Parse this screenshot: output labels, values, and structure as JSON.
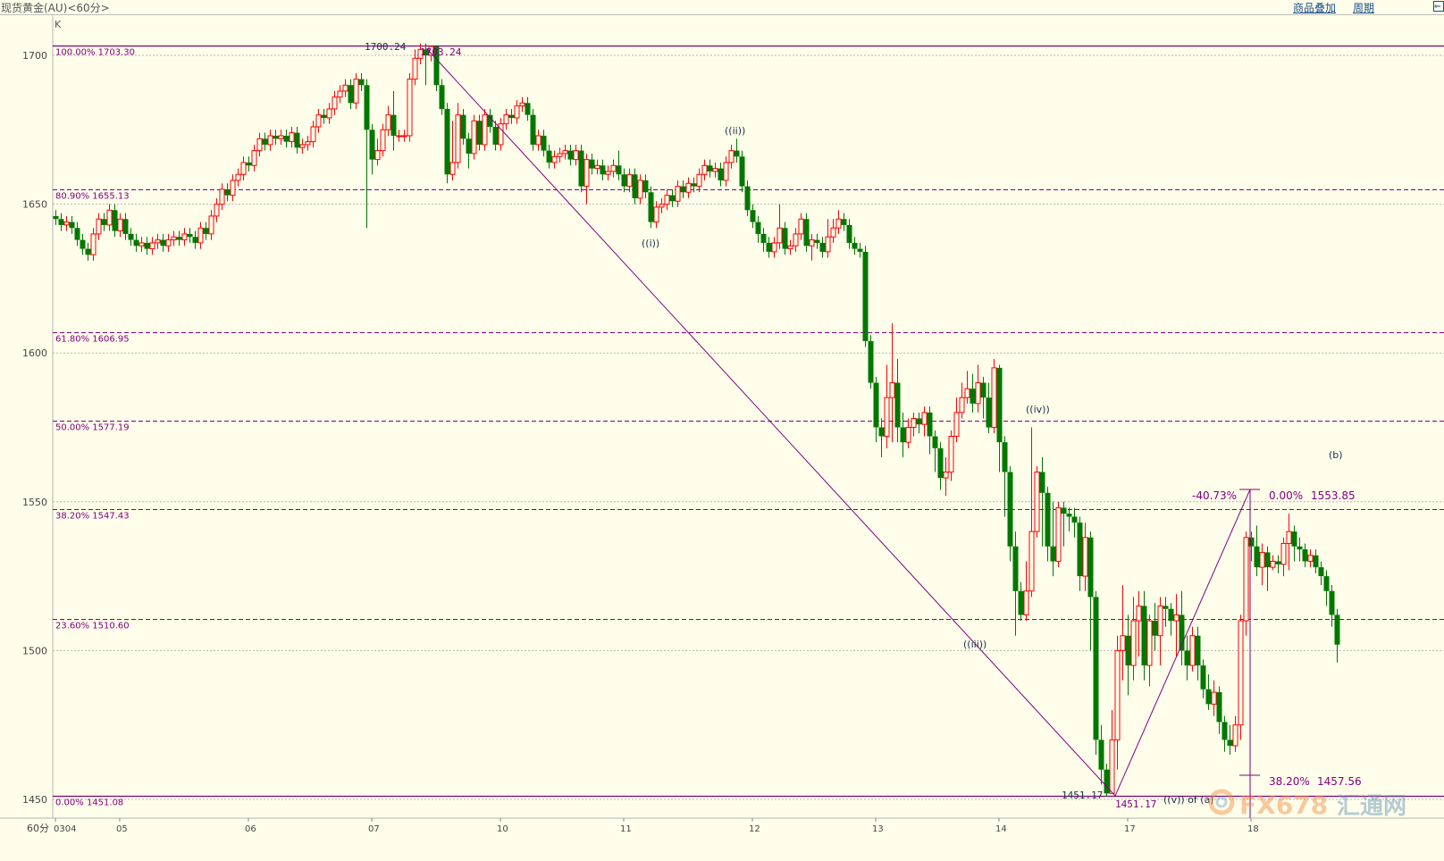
{
  "header": {
    "title": "现货黄金(AU)<60分>",
    "links": [
      "商品叠加",
      "周期"
    ],
    "back_icon": "arrow-left-icon"
  },
  "chart_data": {
    "type": "candlestick",
    "indicator_label": "K",
    "period_label": "60分",
    "ylim": [
      1440,
      1712
    ],
    "y_ticks": [
      1450,
      1500,
      1550,
      1600,
      1650,
      1700
    ],
    "x_ticks": [
      {
        "label": "0304",
        "bar": 0
      },
      {
        "label": "05",
        "bar": 12
      },
      {
        "label": "06",
        "bar": 36
      },
      {
        "label": "07",
        "bar": 59
      },
      {
        "label": "10",
        "bar": 83
      },
      {
        "label": "11",
        "bar": 106
      },
      {
        "label": "12",
        "bar": 130
      },
      {
        "label": "13",
        "bar": 153
      },
      {
        "label": "14",
        "bar": 176
      },
      {
        "label": "17",
        "bar": 200
      },
      {
        "label": "18",
        "bar": 223
      }
    ],
    "colors": {
      "up": "#ff0000",
      "down": "#007800",
      "fib": "#800080",
      "grid": "#b4b4b4"
    },
    "first_open": 1646,
    "hlc": [
      [
        1648,
        1643,
        1645
      ],
      [
        1647,
        1641,
        1643
      ],
      [
        1646,
        1641,
        1644
      ],
      [
        1646,
        1640,
        1642
      ],
      [
        1644,
        1636,
        1638
      ],
      [
        1640,
        1633,
        1635
      ],
      [
        1637,
        1631,
        1633
      ],
      [
        1642,
        1631,
        1640
      ],
      [
        1647,
        1638,
        1645
      ],
      [
        1647,
        1641,
        1643
      ],
      [
        1650,
        1641,
        1648
      ],
      [
        1650,
        1639,
        1641
      ],
      [
        1647,
        1639,
        1645
      ],
      [
        1647,
        1638,
        1640
      ],
      [
        1642,
        1636,
        1638
      ],
      [
        1640,
        1634,
        1636
      ],
      [
        1639,
        1634,
        1637
      ],
      [
        1639,
        1633,
        1635
      ],
      [
        1639,
        1633,
        1637
      ],
      [
        1640,
        1635,
        1638
      ],
      [
        1640,
        1634,
        1636
      ],
      [
        1640,
        1634,
        1638
      ],
      [
        1641,
        1636,
        1639
      ],
      [
        1641,
        1636,
        1638
      ],
      [
        1642,
        1636,
        1640
      ],
      [
        1642,
        1637,
        1639
      ],
      [
        1641,
        1635,
        1637
      ],
      [
        1644,
        1635,
        1642
      ],
      [
        1644,
        1638,
        1640
      ],
      [
        1648,
        1638,
        1646
      ],
      [
        1652,
        1644,
        1650
      ],
      [
        1657,
        1648,
        1655
      ],
      [
        1657,
        1651,
        1653
      ],
      [
        1660,
        1651,
        1658
      ],
      [
        1662,
        1656,
        1660
      ],
      [
        1666,
        1658,
        1664
      ],
      [
        1666,
        1661,
        1663
      ],
      [
        1670,
        1661,
        1668
      ],
      [
        1674,
        1666,
        1672
      ],
      [
        1674,
        1668,
        1670
      ],
      [
        1675,
        1668,
        1673
      ],
      [
        1675,
        1670,
        1672
      ],
      [
        1675,
        1670,
        1673
      ],
      [
        1675,
        1669,
        1671
      ],
      [
        1676,
        1669,
        1674
      ],
      [
        1676,
        1667,
        1669
      ],
      [
        1672,
        1667,
        1670
      ],
      [
        1673,
        1668,
        1671
      ],
      [
        1678,
        1669,
        1676
      ],
      [
        1682,
        1674,
        1680
      ],
      [
        1682,
        1677,
        1679
      ],
      [
        1684,
        1677,
        1682
      ],
      [
        1688,
        1680,
        1686
      ],
      [
        1690,
        1684,
        1688
      ],
      [
        1692,
        1686,
        1690
      ],
      [
        1692,
        1682,
        1684
      ],
      [
        1694,
        1682,
        1692
      ],
      [
        1694,
        1688,
        1690
      ],
      [
        1692,
        1642,
        1675
      ],
      [
        1677,
        1660,
        1665
      ],
      [
        1672,
        1663,
        1668
      ],
      [
        1677,
        1666,
        1675
      ],
      [
        1683,
        1673,
        1680
      ],
      [
        1688,
        1668,
        1673
      ],
      [
        1675,
        1671,
        1673
      ],
      [
        1675,
        1671,
        1673
      ],
      [
        1694,
        1671,
        1692
      ],
      [
        1702,
        1690,
        1699
      ],
      [
        1704,
        1697,
        1702
      ],
      [
        1704,
        1690,
        1700
      ],
      [
        1703,
        1698,
        1703
      ],
      [
        1703,
        1688,
        1690
      ],
      [
        1692,
        1680,
        1682
      ],
      [
        1684,
        1657,
        1660
      ],
      [
        1678,
        1658,
        1664
      ],
      [
        1684,
        1662,
        1680
      ],
      [
        1682,
        1670,
        1672
      ],
      [
        1674,
        1662,
        1667
      ],
      [
        1680,
        1665,
        1678
      ],
      [
        1680,
        1668,
        1670
      ],
      [
        1682,
        1668,
        1680
      ],
      [
        1682,
        1674,
        1676
      ],
      [
        1678,
        1668,
        1670
      ],
      [
        1679,
        1668,
        1677
      ],
      [
        1682,
        1675,
        1680
      ],
      [
        1682,
        1677,
        1679
      ],
      [
        1685,
        1677,
        1683
      ],
      [
        1686,
        1681,
        1684
      ],
      [
        1686,
        1678,
        1680
      ],
      [
        1682,
        1668,
        1670
      ],
      [
        1675,
        1668,
        1673
      ],
      [
        1675,
        1666,
        1668
      ],
      [
        1670,
        1662,
        1664
      ],
      [
        1668,
        1662,
        1666
      ],
      [
        1669,
        1664,
        1667
      ],
      [
        1670,
        1665,
        1668
      ],
      [
        1670,
        1663,
        1665
      ],
      [
        1670,
        1663,
        1668
      ],
      [
        1670,
        1654,
        1656
      ],
      [
        1667,
        1650,
        1665
      ],
      [
        1667,
        1660,
        1662
      ],
      [
        1665,
        1660,
        1663
      ],
      [
        1665,
        1658,
        1660
      ],
      [
        1663,
        1658,
        1661
      ],
      [
        1665,
        1659,
        1663
      ],
      [
        1668,
        1658,
        1660
      ],
      [
        1662,
        1654,
        1656
      ],
      [
        1662,
        1654,
        1660
      ],
      [
        1662,
        1650,
        1652
      ],
      [
        1660,
        1650,
        1658
      ],
      [
        1660,
        1652,
        1654
      ],
      [
        1656,
        1642,
        1644
      ],
      [
        1651,
        1642,
        1649
      ],
      [
        1652,
        1647,
        1650
      ],
      [
        1655,
        1648,
        1653
      ],
      [
        1655,
        1649,
        1651
      ],
      [
        1658,
        1649,
        1656
      ],
      [
        1658,
        1652,
        1654
      ],
      [
        1659,
        1652,
        1657
      ],
      [
        1659,
        1654,
        1656
      ],
      [
        1662,
        1654,
        1660
      ],
      [
        1665,
        1658,
        1663
      ],
      [
        1665,
        1659,
        1661
      ],
      [
        1664,
        1659,
        1662
      ],
      [
        1664,
        1656,
        1658
      ],
      [
        1666,
        1656,
        1664
      ],
      [
        1670,
        1662,
        1668
      ],
      [
        1672,
        1664,
        1666
      ],
      [
        1668,
        1654,
        1656
      ],
      [
        1658,
        1646,
        1648
      ],
      [
        1650,
        1642,
        1644
      ],
      [
        1646,
        1637,
        1640
      ],
      [
        1642,
        1634,
        1637
      ],
      [
        1639,
        1632,
        1634
      ],
      [
        1639,
        1632,
        1637
      ],
      [
        1650,
        1635,
        1642
      ],
      [
        1644,
        1633,
        1635
      ],
      [
        1638,
        1633,
        1636
      ],
      [
        1642,
        1634,
        1640
      ],
      [
        1647,
        1638,
        1645
      ],
      [
        1647,
        1634,
        1636
      ],
      [
        1640,
        1631,
        1638
      ],
      [
        1640,
        1635,
        1637
      ],
      [
        1639,
        1632,
        1634
      ],
      [
        1645,
        1632,
        1639
      ],
      [
        1645,
        1637,
        1642
      ],
      [
        1648,
        1640,
        1645
      ],
      [
        1647,
        1641,
        1643
      ],
      [
        1645,
        1635,
        1637
      ],
      [
        1639,
        1633,
        1635
      ],
      [
        1637,
        1632,
        1634
      ],
      [
        1636,
        1602,
        1604
      ],
      [
        1606,
        1588,
        1590
      ],
      [
        1592,
        1570,
        1575
      ],
      [
        1578,
        1565,
        1572
      ],
      [
        1596,
        1568,
        1585
      ],
      [
        1610,
        1570,
        1590
      ],
      [
        1598,
        1570,
        1575
      ],
      [
        1580,
        1565,
        1570
      ],
      [
        1578,
        1568,
        1575
      ],
      [
        1580,
        1572,
        1578
      ],
      [
        1580,
        1573,
        1576
      ],
      [
        1582,
        1572,
        1580
      ],
      [
        1582,
        1566,
        1572
      ],
      [
        1574,
        1560,
        1568
      ],
      [
        1570,
        1554,
        1558
      ],
      [
        1565,
        1552,
        1560
      ],
      [
        1574,
        1557,
        1572
      ],
      [
        1585,
        1570,
        1580
      ],
      [
        1590,
        1578,
        1585
      ],
      [
        1594,
        1583,
        1588
      ],
      [
        1593,
        1580,
        1583
      ],
      [
        1596,
        1580,
        1590
      ],
      [
        1592,
        1578,
        1585
      ],
      [
        1590,
        1573,
        1575
      ],
      [
        1598,
        1573,
        1595
      ],
      [
        1596,
        1560,
        1570
      ],
      [
        1572,
        1545,
        1560
      ],
      [
        1562,
        1530,
        1535
      ],
      [
        1540,
        1505,
        1520
      ],
      [
        1523,
        1510,
        1512
      ],
      [
        1530,
        1510,
        1520
      ],
      [
        1575,
        1518,
        1540
      ],
      [
        1562,
        1538,
        1560
      ],
      [
        1565,
        1535,
        1553
      ],
      [
        1555,
        1530,
        1535
      ],
      [
        1550,
        1525,
        1530
      ],
      [
        1550,
        1528,
        1548
      ],
      [
        1550,
        1535,
        1546
      ],
      [
        1548,
        1540,
        1545
      ],
      [
        1548,
        1538,
        1543
      ],
      [
        1545,
        1520,
        1525
      ],
      [
        1543,
        1520,
        1538
      ],
      [
        1540,
        1500,
        1518
      ],
      [
        1520,
        1465,
        1470
      ],
      [
        1475,
        1455,
        1460
      ],
      [
        1462,
        1451,
        1452
      ],
      [
        1480,
        1455,
        1470
      ],
      [
        1505,
        1460,
        1500
      ],
      [
        1522,
        1490,
        1505
      ],
      [
        1512,
        1485,
        1495
      ],
      [
        1518,
        1490,
        1510
      ],
      [
        1520,
        1498,
        1515
      ],
      [
        1520,
        1490,
        1495
      ],
      [
        1512,
        1488,
        1510
      ],
      [
        1516,
        1500,
        1505
      ],
      [
        1518,
        1495,
        1515
      ],
      [
        1518,
        1508,
        1514
      ],
      [
        1516,
        1505,
        1510
      ],
      [
        1519,
        1498,
        1512
      ],
      [
        1520,
        1495,
        1500
      ],
      [
        1505,
        1490,
        1495
      ],
      [
        1508,
        1493,
        1505
      ],
      [
        1508,
        1490,
        1495
      ],
      [
        1497,
        1484,
        1487
      ],
      [
        1492,
        1480,
        1482
      ],
      [
        1490,
        1478,
        1486
      ],
      [
        1488,
        1472,
        1476
      ],
      [
        1478,
        1466,
        1470
      ],
      [
        1475,
        1465,
        1468
      ],
      [
        1478,
        1466,
        1475
      ],
      [
        1512,
        1470,
        1510
      ],
      [
        1540,
        1505,
        1538
      ],
      [
        1540,
        1530,
        1535
      ],
      [
        1542,
        1525,
        1528
      ],
      [
        1536,
        1522,
        1533
      ],
      [
        1535,
        1520,
        1528
      ],
      [
        1532,
        1527,
        1530
      ],
      [
        1532,
        1526,
        1529
      ],
      [
        1538,
        1525,
        1536
      ],
      [
        1546,
        1527,
        1540
      ],
      [
        1542,
        1530,
        1535
      ],
      [
        1538,
        1530,
        1534
      ],
      [
        1536,
        1528,
        1530
      ],
      [
        1534,
        1528,
        1532
      ],
      [
        1534,
        1526,
        1528
      ],
      [
        1530,
        1522,
        1525
      ],
      [
        1527,
        1515,
        1520
      ],
      [
        1522,
        1508,
        1512
      ],
      [
        1514,
        1496,
        1502
      ]
    ],
    "fib_levels": [
      {
        "label": "100.00% 1703.30",
        "price": 1703.3,
        "style": "solid"
      },
      {
        "label": "80.90% 1655.13",
        "price": 1655.13,
        "style": "dashed"
      },
      {
        "label": "61.80% 1606.95",
        "price": 1606.95,
        "style": "dashed"
      },
      {
        "label": "50.00% 1577.19",
        "price": 1577.19,
        "style": "dashed"
      },
      {
        "label": "38.20% 1547.43",
        "price": 1547.43,
        "style": "dashed"
      },
      {
        "label": "23.60% 1510.60",
        "price": 1510.6,
        "style": "dashed"
      },
      {
        "label": "0.00% 1451.08",
        "price": 1451.08,
        "style": "solid"
      }
    ],
    "projection": {
      "top_pct": "-40.73%",
      "top_zero": "0.00%",
      "top_price": "1553.85",
      "bottom_pct": "38.20%",
      "bottom_price": "1457.56"
    },
    "annotations": {
      "high_left": "1700.24",
      "high_right": "1703.24",
      "low_left": "1451.17",
      "low_right": "1451.17",
      "wave_i": "((i))",
      "wave_ii": "((ii))",
      "wave_iii": "((iii))",
      "wave_iv": "((iv))",
      "wave_v": "((v)) of (a)",
      "wave_b": "(b)"
    }
  },
  "watermark": {
    "text_latin": "FX678",
    "text_cn": "汇通网"
  }
}
